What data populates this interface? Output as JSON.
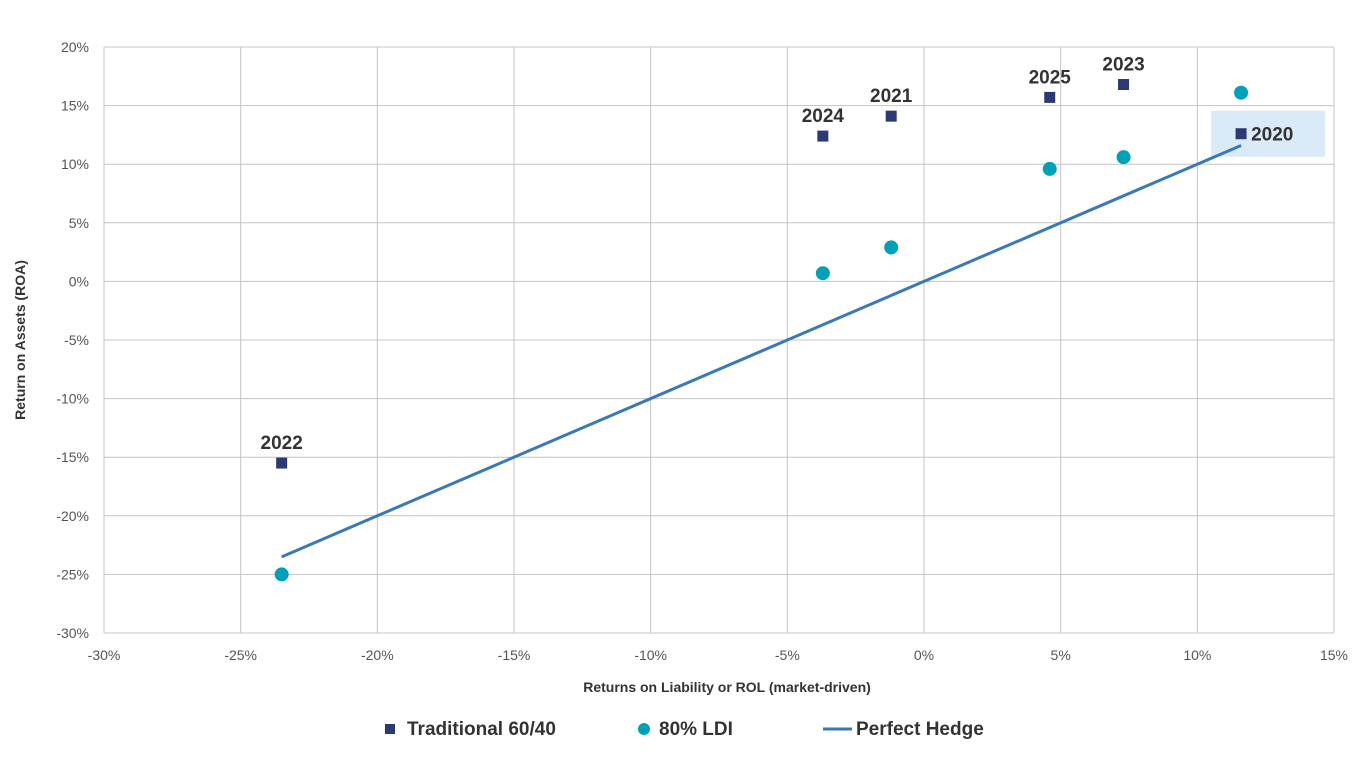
{
  "chart_data": {
    "type": "scatter",
    "title": "",
    "xlabel": "Returns on Liability or ROL (market-driven)",
    "ylabel": "Return on Assets (ROA)",
    "xlim": [
      -30,
      15
    ],
    "ylim": [
      -30,
      20
    ],
    "x_ticks": [
      -30,
      -25,
      -20,
      -15,
      -10,
      -5,
      0,
      5,
      10,
      15
    ],
    "y_ticks": [
      -30,
      -25,
      -20,
      -15,
      -10,
      -5,
      0,
      5,
      10,
      15,
      20
    ],
    "x_tick_labels": [
      "-30%",
      "-25%",
      "-20%",
      "-15%",
      "-10%",
      "-5%",
      "0%",
      "5%",
      "10%",
      "15%"
    ],
    "y_tick_labels": [
      "-30%",
      "-25%",
      "-20%",
      "-15%",
      "-10%",
      "-5%",
      "0%",
      "5%",
      "10%",
      "15%",
      "20%"
    ],
    "grid": true,
    "legend_position": "bottom",
    "highlighted_point": "2020",
    "highlight_color": "#dbeaf7",
    "series": [
      {
        "name": "Traditional 60/40",
        "marker": "square",
        "color": "#2b3a75",
        "points": [
          {
            "label": "2022",
            "x": -23.5,
            "y": -15.5,
            "label_position": "above"
          },
          {
            "label": "2024",
            "x": -3.7,
            "y": 12.4,
            "label_position": "above"
          },
          {
            "label": "2021",
            "x": -1.2,
            "y": 14.1,
            "label_position": "above"
          },
          {
            "label": "2025",
            "x": 4.6,
            "y": 15.7,
            "label_position": "above"
          },
          {
            "label": "2023",
            "x": 7.3,
            "y": 16.8,
            "label_position": "above"
          },
          {
            "label": "2020",
            "x": 11.6,
            "y": 12.6,
            "label_position": "right"
          }
        ]
      },
      {
        "name": "80% LDI",
        "marker": "circle",
        "color": "#00a0b8",
        "points": [
          {
            "x": -23.5,
            "y": -25.0
          },
          {
            "x": -3.7,
            "y": 0.7
          },
          {
            "x": -1.2,
            "y": 2.9
          },
          {
            "x": 4.6,
            "y": 9.6
          },
          {
            "x": 7.3,
            "y": 10.6
          },
          {
            "x": 11.6,
            "y": 16.1
          }
        ]
      },
      {
        "name": "Perfect Hedge",
        "marker": "line",
        "color": "#3a78b8",
        "points": [
          {
            "x": -23.5,
            "y": -23.5
          },
          {
            "x": 11.6,
            "y": 11.6
          }
        ]
      }
    ]
  }
}
